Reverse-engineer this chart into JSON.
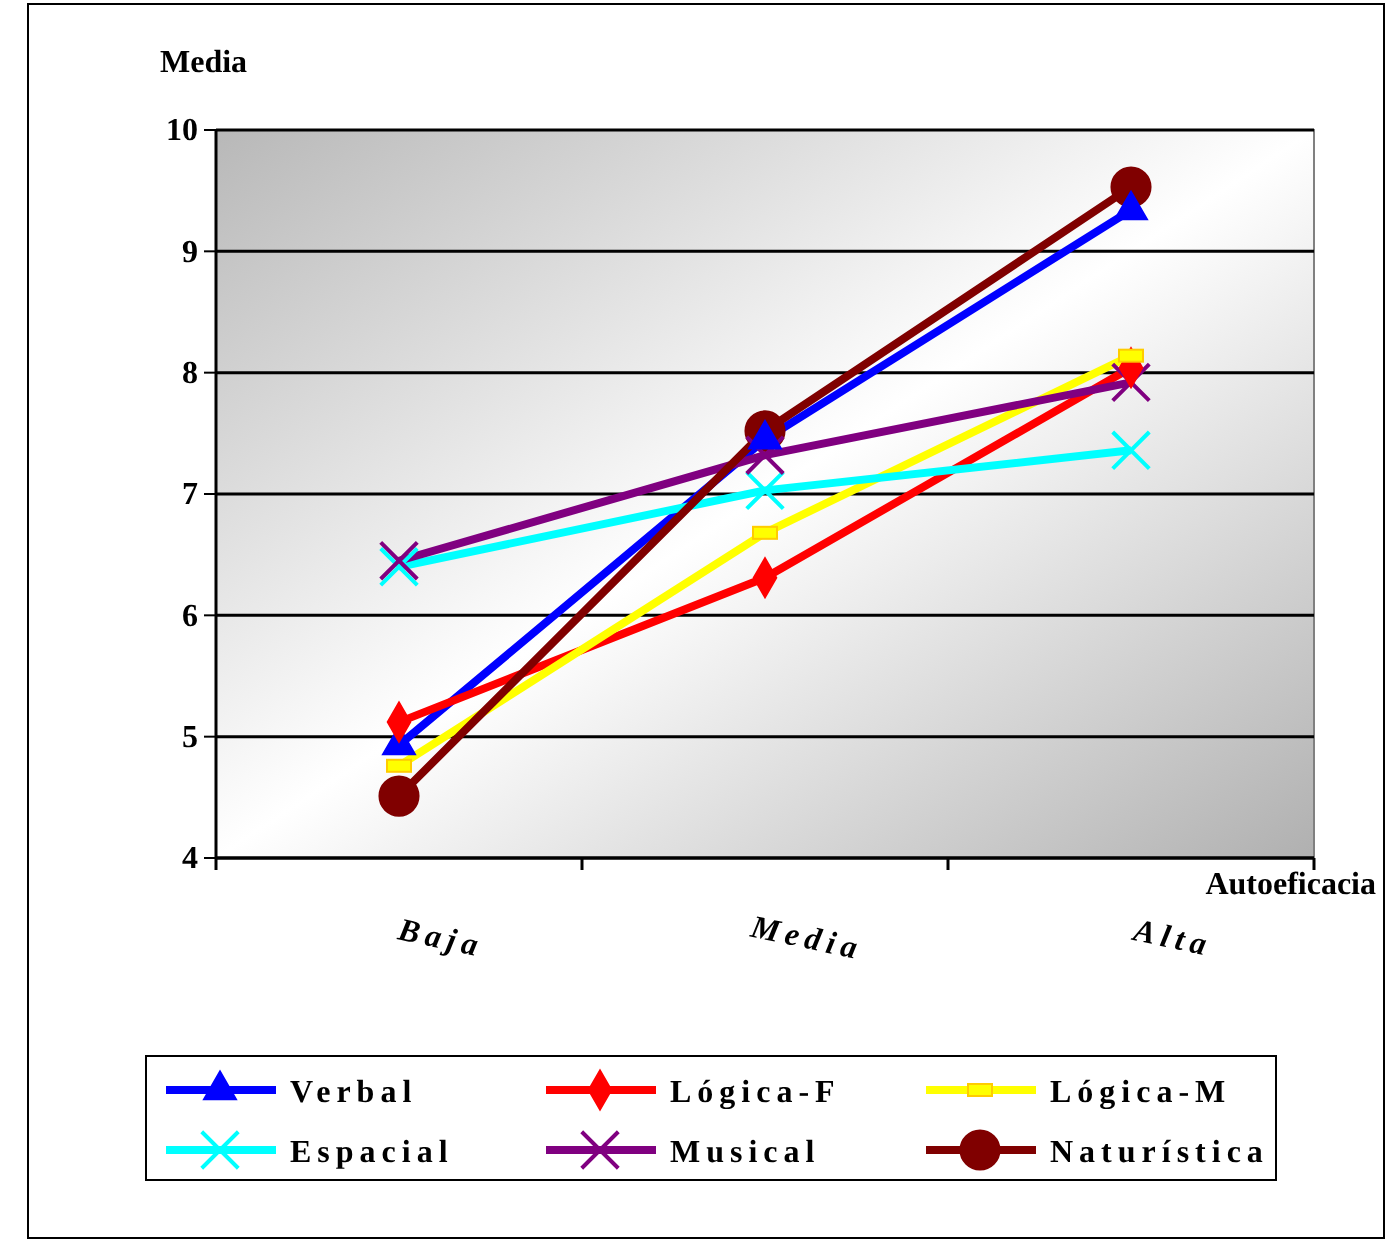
{
  "chart_data": {
    "type": "line",
    "ylabel": "Media",
    "xlabel": "Autoeficacia",
    "categories": [
      "Baja",
      "Media",
      "Alta"
    ],
    "ylim": [
      4,
      10
    ],
    "yticks": [
      4,
      5,
      6,
      7,
      8,
      9,
      10
    ],
    "grid": "y",
    "legend": "bottom",
    "series": [
      {
        "name": "Verbal",
        "color": "#0000ff",
        "marker": "triangle",
        "values": [
          4.93,
          7.45,
          9.34
        ]
      },
      {
        "name": "Lógica-F",
        "color": "#ff0000",
        "marker": "diamond",
        "values": [
          5.12,
          6.31,
          8.04
        ]
      },
      {
        "name": "Lógica-M",
        "color": "#ffff00",
        "marker": "square",
        "values": [
          4.76,
          6.68,
          8.14
        ]
      },
      {
        "name": "Espacial",
        "color": "#00ffff",
        "marker": "cross",
        "values": [
          6.4,
          7.03,
          7.36
        ]
      },
      {
        "name": "Musical",
        "color": "#800080",
        "marker": "cross",
        "values": [
          6.45,
          7.32,
          7.92
        ]
      },
      {
        "name": "Naturística",
        "color": "#800000",
        "marker": "circle",
        "values": [
          4.51,
          7.52,
          9.53
        ]
      }
    ]
  }
}
